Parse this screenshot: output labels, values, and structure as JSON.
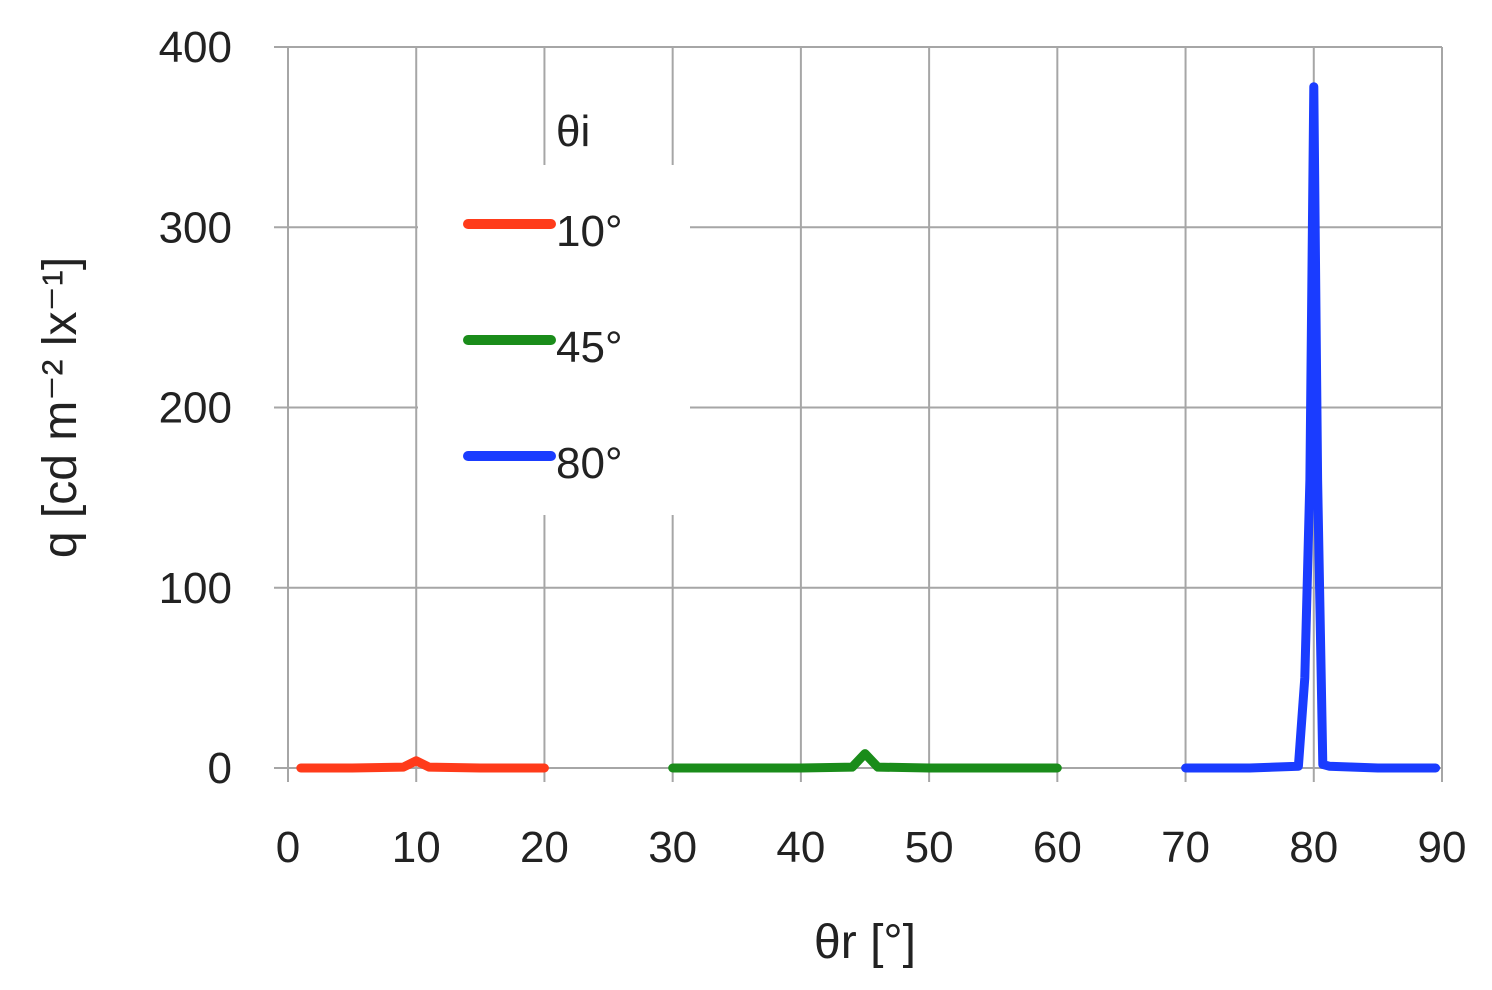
{
  "chart_data": {
    "type": "line",
    "xlabel": "θr [°]",
    "ylabel": "q [cd m⁻² lx⁻¹]",
    "xlim": [
      0,
      90
    ],
    "ylim": [
      0,
      400
    ],
    "xticks": [
      0,
      10,
      20,
      30,
      40,
      50,
      60,
      70,
      80,
      90
    ],
    "yticks": [
      0,
      100,
      200,
      300,
      400
    ],
    "grid": true,
    "legend": {
      "title": "θi",
      "placement": "upper-left"
    },
    "series": [
      {
        "name": "10°",
        "color": "#ff3b1a",
        "x": [
          1,
          5,
          9,
          10,
          11,
          15,
          20
        ],
        "y": [
          0,
          0,
          0.5,
          4,
          0.5,
          0,
          0
        ]
      },
      {
        "name": "45°",
        "color": "#1a8c1a",
        "x": [
          30,
          35,
          40,
          44,
          45,
          46,
          50,
          55,
          60
        ],
        "y": [
          0,
          0,
          0,
          0.5,
          8,
          0.5,
          0,
          0,
          0
        ]
      },
      {
        "name": "80°",
        "color": "#1a3cff",
        "x": [
          70,
          75,
          78.8,
          79.3,
          79.7,
          80,
          80.3,
          80.7,
          81.2,
          85,
          89.5
        ],
        "y": [
          0,
          0,
          1,
          50,
          160,
          378,
          160,
          2,
          1,
          0,
          0
        ]
      }
    ]
  }
}
